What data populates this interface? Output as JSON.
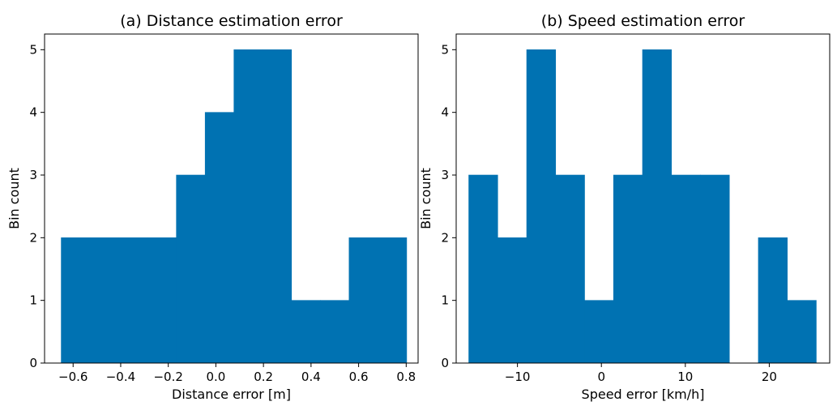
{
  "chart_data": [
    {
      "type": "bar",
      "title": "(a) Distance estimation error",
      "xlabel": "Distance error [m]",
      "ylabel": "Bin count",
      "xlim": [
        -0.72,
        0.85
      ],
      "ylim": [
        0,
        5.25
      ],
      "xticks": [
        -0.6,
        -0.4,
        -0.2,
        0.0,
        0.2,
        0.4,
        0.6,
        0.8
      ],
      "xtick_labels": [
        "−0.6",
        "−0.4",
        "−0.2",
        "0.0",
        "0.2",
        "0.4",
        "0.6",
        "0.8"
      ],
      "yticks": [
        0,
        1,
        2,
        3,
        4,
        5
      ],
      "ytick_labels": [
        "0",
        "1",
        "2",
        "3",
        "4",
        "5"
      ],
      "grid": false,
      "color": "#0072B2",
      "bin_edges": [
        -0.65,
        -0.529,
        -0.408,
        -0.287,
        -0.166,
        -0.045,
        0.076,
        0.197,
        0.318,
        0.439,
        0.56,
        0.681,
        0.802
      ],
      "values": [
        2,
        2,
        2,
        2,
        3,
        4,
        5,
        5,
        1,
        1,
        2,
        2
      ]
    },
    {
      "type": "bar",
      "title": "(b) Speed estimation error",
      "xlabel": "Speed error [km/h]",
      "ylabel": "Bin count",
      "xlim": [
        -17.3,
        27.2
      ],
      "ylim": [
        0,
        5.25
      ],
      "xticks": [
        -10,
        0,
        10,
        20
      ],
      "xtick_labels": [
        "−10",
        "0",
        "10",
        "20"
      ],
      "yticks": [
        0,
        1,
        2,
        3,
        4,
        5
      ],
      "ytick_labels": [
        "0",
        "1",
        "2",
        "3",
        "4",
        "5"
      ],
      "grid": false,
      "color": "#0072B2",
      "bin_edges": [
        -15.8,
        -12.35,
        -8.9,
        -5.45,
        -2.0,
        1.45,
        4.9,
        8.35,
        11.8,
        15.25,
        18.7,
        22.15,
        25.6
      ],
      "values": [
        3,
        2,
        5,
        3,
        1,
        3,
        5,
        3,
        3,
        0,
        2,
        1
      ]
    }
  ]
}
